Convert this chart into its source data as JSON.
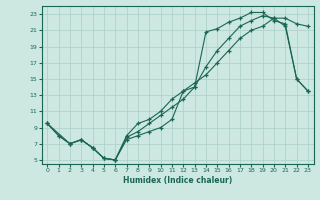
{
  "xlabel": "Humidex (Indice chaleur)",
  "xlim": [
    -0.5,
    23.5
  ],
  "ylim": [
    4.5,
    24.0
  ],
  "xticks": [
    0,
    1,
    2,
    3,
    4,
    5,
    6,
    7,
    8,
    9,
    10,
    11,
    12,
    13,
    14,
    15,
    16,
    17,
    18,
    19,
    20,
    21,
    22,
    23
  ],
  "yticks": [
    5,
    7,
    9,
    11,
    13,
    15,
    17,
    19,
    21,
    23
  ],
  "bg_color": "#cce8e0",
  "grid_color": "#aacfc8",
  "line_color": "#1a6655",
  "line1_x": [
    0,
    1,
    2,
    3,
    4,
    5,
    6,
    7,
    8,
    9,
    10,
    11,
    12,
    13,
    14,
    15,
    16,
    17,
    18,
    19,
    20,
    21,
    22,
    23
  ],
  "line1_y": [
    9.5,
    8.0,
    7.0,
    7.5,
    6.5,
    5.2,
    5.0,
    8.0,
    9.5,
    10.0,
    11.0,
    12.5,
    13.5,
    14.5,
    15.5,
    17.0,
    18.5,
    20.0,
    21.0,
    21.5,
    22.5,
    22.5,
    21.8,
    21.5
  ],
  "line2_x": [
    0,
    1,
    2,
    3,
    4,
    5,
    6,
    7,
    8,
    9,
    10,
    11,
    12,
    13,
    14,
    15,
    16,
    17,
    18,
    19,
    20,
    21,
    22,
    23
  ],
  "line2_y": [
    9.5,
    8.0,
    7.0,
    7.5,
    6.5,
    5.2,
    5.0,
    7.5,
    8.0,
    8.5,
    9.0,
    10.0,
    13.5,
    14.0,
    20.8,
    21.2,
    22.0,
    22.5,
    23.2,
    23.2,
    22.2,
    21.8,
    15.0,
    13.5
  ],
  "line3_x": [
    0,
    2,
    3,
    4,
    5,
    6,
    7,
    8,
    9,
    10,
    11,
    12,
    13,
    14,
    15,
    16,
    17,
    18,
    19,
    20,
    21,
    22,
    23
  ],
  "line3_y": [
    9.5,
    7.0,
    7.5,
    6.5,
    5.2,
    5.0,
    7.8,
    8.5,
    9.5,
    10.5,
    11.5,
    12.5,
    14.0,
    16.5,
    18.5,
    20.0,
    21.5,
    22.2,
    22.8,
    22.5,
    21.5,
    15.0,
    13.5
  ]
}
